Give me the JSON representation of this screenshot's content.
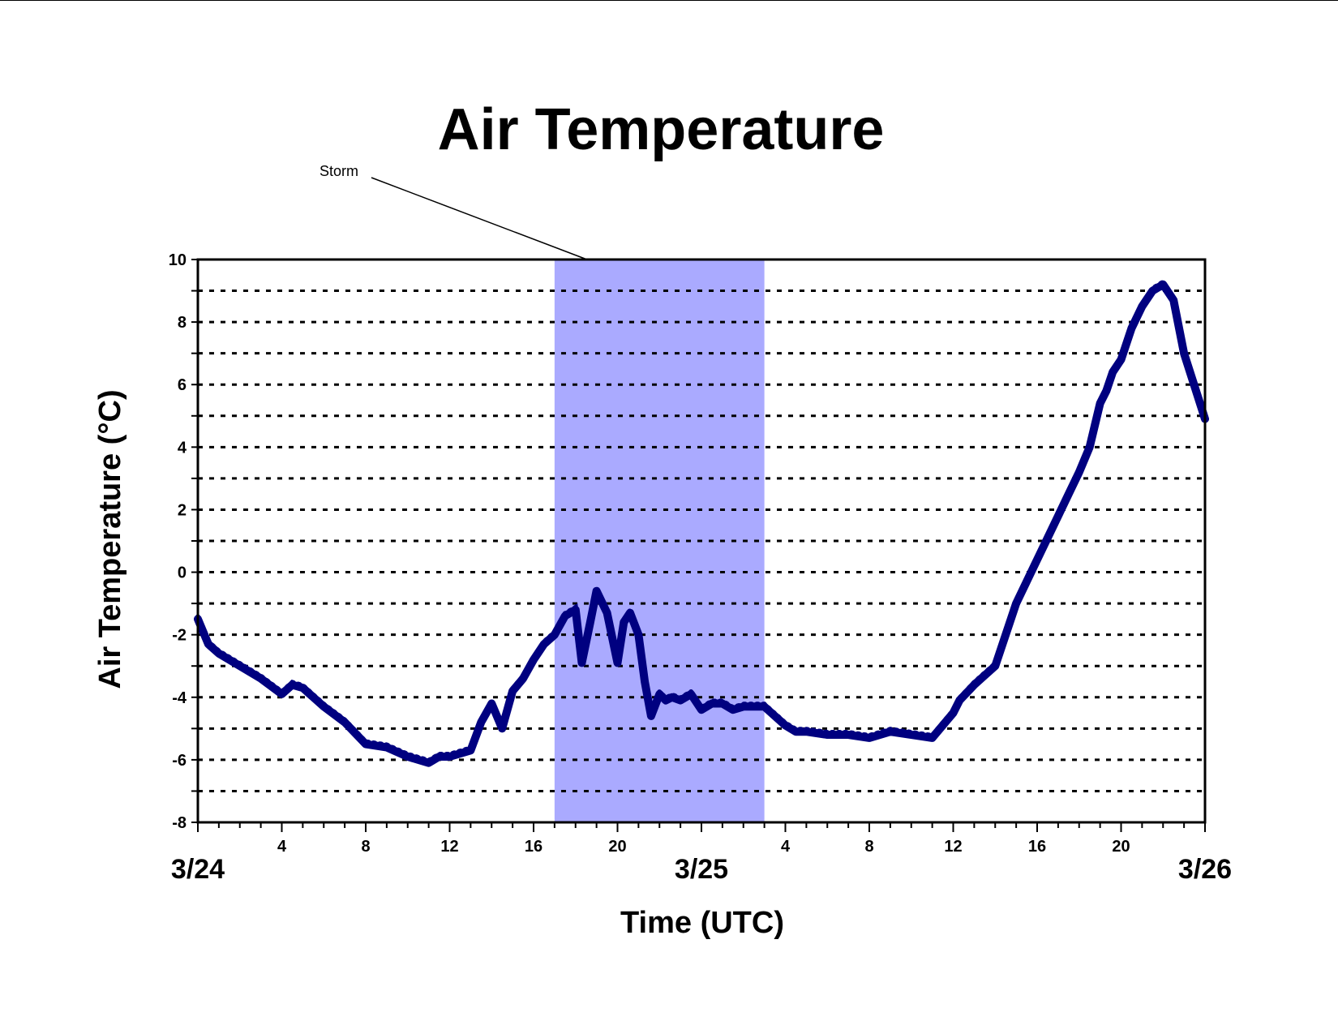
{
  "chart_data": {
    "type": "line",
    "title": "Air Temperature",
    "xlabel": "Time (UTC)",
    "ylabel": "Air Temperature (°C)",
    "ylim": [
      -8,
      10
    ],
    "yticks": [
      "10",
      "8",
      "6",
      "4",
      "2",
      "0",
      "-2",
      "-4",
      "-6",
      "-8"
    ],
    "grid": "horizontal dashed, every 1 °C",
    "x_unit": "hours from 3/24 00:00 UTC",
    "xlim": [
      0,
      48
    ],
    "x_hour_tick_labels": [
      "4",
      "8",
      "12",
      "16",
      "20",
      "4",
      "8",
      "12",
      "16",
      "20"
    ],
    "x_date_labels": [
      "3/24",
      "3/25",
      "3/26"
    ],
    "shaded_region": {
      "label": "Storm",
      "x_start": 17.0,
      "x_end": 27.0,
      "color": "#aaaaff"
    },
    "series": [
      {
        "color": "#000080",
        "x": [
          0,
          0.5,
          1,
          2,
          3,
          4,
          4.5,
          5,
          6,
          7,
          8,
          9,
          10,
          11,
          11.5,
          12,
          13,
          13.5,
          14,
          14.5,
          15,
          15.5,
          16,
          16.5,
          17,
          17.5,
          18,
          18.3,
          18.7,
          19,
          19.5,
          20,
          20.3,
          20.6,
          21,
          21.3,
          21.6,
          22,
          22.3,
          22.6,
          23,
          23.5,
          24,
          24.5,
          25,
          25.5,
          26,
          27,
          28,
          28.5,
          29,
          30,
          31,
          32,
          33,
          34,
          35,
          36,
          36.3,
          37,
          37.5,
          38,
          39,
          40,
          41,
          41.5,
          42,
          42.5,
          43,
          43.3,
          43.6,
          44,
          44.5,
          45,
          45.5,
          46,
          46.5,
          47,
          48
        ],
        "y": [
          -1.5,
          -2.3,
          -2.6,
          -3.0,
          -3.4,
          -3.9,
          -3.6,
          -3.7,
          -4.3,
          -4.8,
          -5.5,
          -5.6,
          -5.9,
          -6.1,
          -5.9,
          -5.9,
          -5.7,
          -4.8,
          -4.2,
          -5.0,
          -3.8,
          -3.4,
          -2.8,
          -2.3,
          -2.0,
          -1.4,
          -1.2,
          -2.9,
          -1.6,
          -0.6,
          -1.3,
          -2.9,
          -1.6,
          -1.3,
          -2.0,
          -3.5,
          -4.6,
          -3.9,
          -4.1,
          -4.0,
          -4.1,
          -3.9,
          -4.4,
          -4.2,
          -4.2,
          -4.4,
          -4.3,
          -4.3,
          -4.9,
          -5.1,
          -5.1,
          -5.2,
          -5.2,
          -5.3,
          -5.1,
          -5.2,
          -5.3,
          -4.5,
          -4.1,
          -3.6,
          -3.3,
          -3.0,
          -1.0,
          0.4,
          1.8,
          2.5,
          3.2,
          4.0,
          5.4,
          5.8,
          6.4,
          6.8,
          7.8,
          8.5,
          9.0,
          9.2,
          8.7,
          7.0,
          4.9
        ]
      }
    ],
    "annotations": [
      {
        "text": "Storm",
        "points_to": "shaded storm region"
      }
    ]
  }
}
